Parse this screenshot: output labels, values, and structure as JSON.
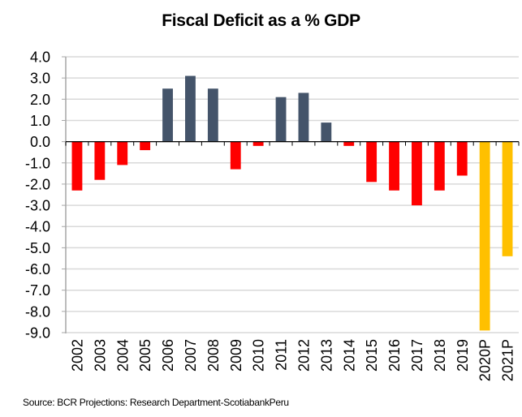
{
  "chart_data": {
    "type": "bar",
    "title": "Fiscal Deficit as a % GDP",
    "xlabel": "",
    "ylabel": "",
    "ylim": [
      -9.0,
      4.0
    ],
    "ytick_step": 1.0,
    "yticks": [
      "4.0",
      "3.0",
      "2.0",
      "1.0",
      "0.0",
      "-1.0",
      "-2.0",
      "-3.0",
      "-4.0",
      "-5.0",
      "-6.0",
      "-7.0",
      "-8.0",
      "-9.0"
    ],
    "grid": true,
    "legend": "none",
    "categories": [
      "2002",
      "2003",
      "2004",
      "2005",
      "2006",
      "2007",
      "2008",
      "2009",
      "2010",
      "2011",
      "2012",
      "2013",
      "2014",
      "2015",
      "2016",
      "2017",
      "2018",
      "2019",
      "2020P",
      "2021P"
    ],
    "values": [
      -2.3,
      -1.8,
      -1.1,
      -0.4,
      2.5,
      3.1,
      2.5,
      -1.3,
      -0.2,
      2.1,
      2.3,
      0.9,
      -0.2,
      -1.9,
      -2.3,
      -3.0,
      -2.3,
      -1.6,
      -8.9,
      -5.4
    ],
    "colors": {
      "deficit": "#ff0000",
      "surplus": "#44546a",
      "projection": "#ffc000"
    },
    "projection_categories": [
      "2020P",
      "2021P"
    ]
  },
  "source_note": "Source: BCR  Projections: Research Department-ScotiabankPeru"
}
